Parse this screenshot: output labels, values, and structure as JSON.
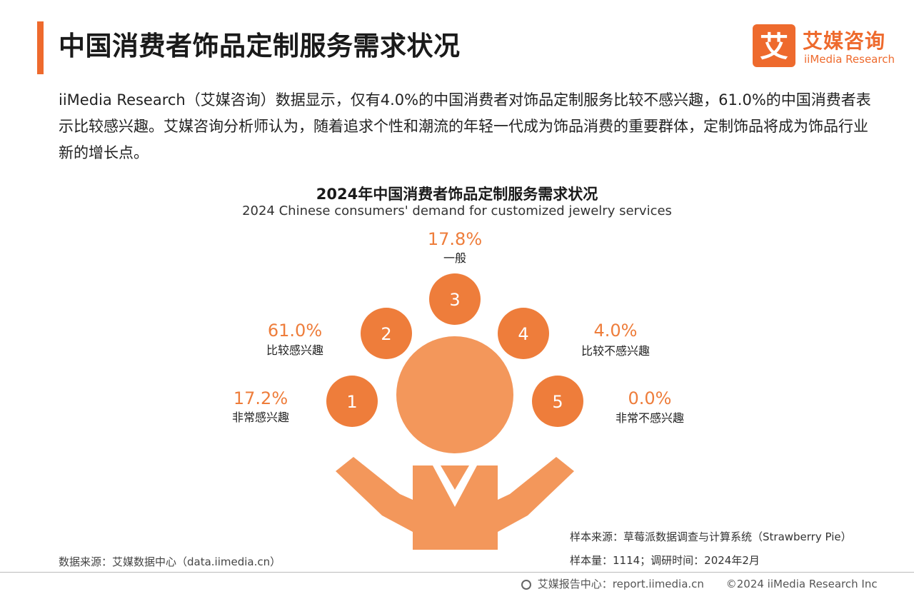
{
  "header": {
    "title": "中国消费者饰品定制服务需求状况",
    "logo_cn": "艾媒咨询",
    "logo_en": "iiMedia Research",
    "logo_mark": "艾"
  },
  "intro": "iiMedia Research（艾媒咨询）数据显示，仅有4.0%的中国消费者对饰品定制服务比较不感兴趣，61.0%的中国消费者表示比较感兴趣。艾媒咨询分析师认为，随着追求个性和潮流的年轻一代成为饰品消费的重要群体，定制饰品将成为饰品行业新的增长点。",
  "chart_data": {
    "type": "pie",
    "title": "2024年中国消费者饰品定制服务需求状况",
    "subtitle": "2024 Chinese consumers' demand for customized jewelry services",
    "unit": "%",
    "items": [
      {
        "number": "1",
        "label": "非常感兴趣",
        "value": 17.2,
        "display": "17.2%"
      },
      {
        "number": "2",
        "label": "比较感兴趣",
        "value": 61.0,
        "display": "61.0%"
      },
      {
        "number": "3",
        "label": "一般",
        "value": 17.8,
        "display": "17.8%"
      },
      {
        "number": "4",
        "label": "比较不感兴趣",
        "value": 4.0,
        "display": "4.0%"
      },
      {
        "number": "5",
        "label": "非常不感兴趣",
        "value": 0.0,
        "display": "0.0%"
      }
    ]
  },
  "colors": {
    "accent": "#ee6a2d",
    "circle": "#ee7d3b",
    "figure": "#f3975b",
    "label_value": "#ee7d3b"
  },
  "footer": {
    "data_source": "数据来源：艾媒数据中心（data.iimedia.cn）",
    "sample_source": "样本来源：草莓派数据调查与计算系统（Strawberry Pie）",
    "sample_size": "样本量：1114；调研时间：2024年2月",
    "report_center": "艾媒报告中心：report.iimedia.cn",
    "copyright": "©2024  iiMedia Research  Inc"
  }
}
